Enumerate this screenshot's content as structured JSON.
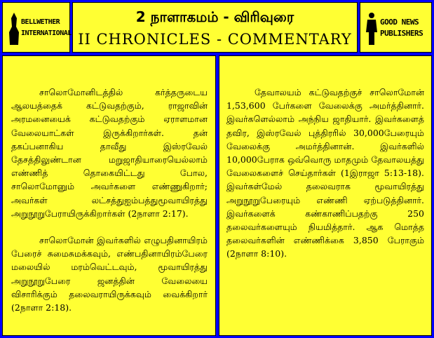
{
  "header": {
    "left_logo": {
      "lines": [
        "BELLWETHER",
        "INTERNATIONAL"
      ]
    },
    "title_tamil": "2 நாளாகமம் - விரிவுரை",
    "title_english": "II CHRONICLES - COMMENTARY",
    "right_logo": {
      "lines": [
        "GOOD NEWS",
        "PUBLISHERS"
      ]
    }
  },
  "columns": [
    {
      "paragraphs": [
        "சாலொமோனிடத்தில் கர்த்தருடைய ஆலயத்தைக் கட்டுவதற்கும், ராஜாவின் அரமனையைக் கட்டுவதற்கும் ஏராளமான வேலையாட்கள் இருக்கிறார்கள். தன் தகப்பனாகிய தாவீது இஸ்ரவேல் தேசத்திலுண்டான மறுஜாதியாரையெல்லாம் எண்ணித் தொகையிட்டது போல, சாலொமோனும் அவர்களை எண்ணுகிறார்; அவர்கள் லட்சத்துஐம்பத்துமூவாயிரத்து அறுநூறுபேராயிருக்கிறார்கள் (2நாளா 2:17).",
        "சாலொமோன் இவர்களில் எழுபதினாயிரம் பேரைச் சுமைசுமக்கவும், எண்பதினாயிரம்பேரை மலையில் மரம்வெட்டவும், மூவாயிரத்து அறுநூறுபேரை ஜனத்தின் வேலையை விசாரிக்கும் தலைவராயிருக்கவும் வைக்கிறார் (2நாளா 2:18)."
      ]
    },
    {
      "paragraphs": [
        "தேவாலயம் கட்டுவதற்குச் சாலொமோன் 1,53,600 பேர்களை வேலைக்கு அமர்த்தினார். இவர்களெல்லாம் அந்நிய ஜாதியார். இவர்களைத் தவிர, இஸ்ரவேல் புத்திரரில் 30,000பேரையும் வேலைக்கு அமர்த்தினான். இவர்களில் 10,000பேராக ஒவ்வொரு மாதமும் தேவாலயத்து வேலைகளைச் செய்தார்கள் (1இராஜா 5:13-18). இவர்கள்மேல் தலைவராக மூவாயிரத்து அறுநூறுபேரையும் எண்ணி ஏற்படுத்தினார். இவர்களைக் கண்காணிப்பதற்கு 250 தலைவர்களையும் நியமித்தார். ஆக மொத்த தலைவர்களின் எண்ணிக்கை 3,850 பேராகும் (2நாளா 8:10)."
      ]
    }
  ]
}
